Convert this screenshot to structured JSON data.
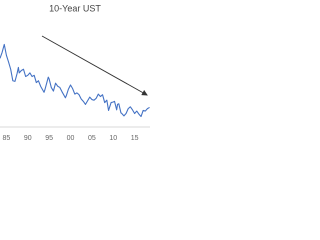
{
  "chart_data": {
    "type": "line",
    "title": "10-Year UST",
    "x": [
      1983.5,
      1984,
      1984.5,
      1985,
      1985.5,
      1986,
      1986.5,
      1987,
      1987.5,
      1987.8,
      1988,
      1988.5,
      1989,
      1989.5,
      1990,
      1990.5,
      1991,
      1991.5,
      1992,
      1992.5,
      1993,
      1993.8,
      1994,
      1994.8,
      1995,
      1995.5,
      1996,
      1996.5,
      1997,
      1997.5,
      1998,
      1998.8,
      1999,
      1999.5,
      2000,
      2000.5,
      2001,
      2001.5,
      2002,
      2002.5,
      2003,
      2003.5,
      2004,
      2004.5,
      2005,
      2005.5,
      2006,
      2006.5,
      2007,
      2007.5,
      2008,
      2008.5,
      2008.9,
      2009.5,
      2010,
      2010.3,
      2010.8,
      2011,
      2011.3,
      2011.8,
      2012,
      2012.5,
      2013,
      2013.5,
      2014,
      2014.5,
      2015,
      2015.5,
      2016,
      2016.5,
      2017,
      2017.5,
      2018,
      2018.5
    ],
    "values": [
      11.0,
      12.0,
      13.3,
      11.5,
      10.4,
      9.2,
      7.3,
      7.2,
      8.5,
      9.5,
      8.6,
      9.0,
      9.2,
      8.0,
      8.2,
      8.6,
      8.0,
      8.2,
      7.0,
      7.3,
      6.4,
      5.4,
      5.8,
      7.9,
      7.6,
      6.2,
      5.6,
      6.9,
      6.4,
      6.2,
      5.5,
      4.5,
      4.8,
      5.9,
      6.6,
      6.0,
      5.1,
      5.3,
      5.0,
      4.3,
      3.9,
      3.4,
      4.0,
      4.6,
      4.2,
      4.1,
      4.4,
      5.1,
      4.7,
      5.0,
      3.7,
      4.1,
      2.4,
      3.7,
      3.8,
      3.9,
      2.5,
      3.4,
      3.5,
      2.0,
      1.9,
      1.5,
      1.9,
      2.7,
      3.0,
      2.5,
      1.9,
      2.3,
      1.8,
      1.4,
      2.4,
      2.3,
      2.7,
      2.9
    ],
    "color": "#4472c4",
    "xlim": [
      1983.5,
      2018.6
    ],
    "xticks": [
      {
        "value": 1985,
        "label": "85"
      },
      {
        "value": 1990,
        "label": "90"
      },
      {
        "value": 1995,
        "label": "95"
      },
      {
        "value": 2000,
        "label": "00"
      },
      {
        "value": 2005,
        "label": "05"
      },
      {
        "value": 2010,
        "label": "10"
      },
      {
        "value": 2015,
        "label": "15"
      }
    ],
    "ylim": [
      0,
      17
    ],
    "grid": false
  }
}
